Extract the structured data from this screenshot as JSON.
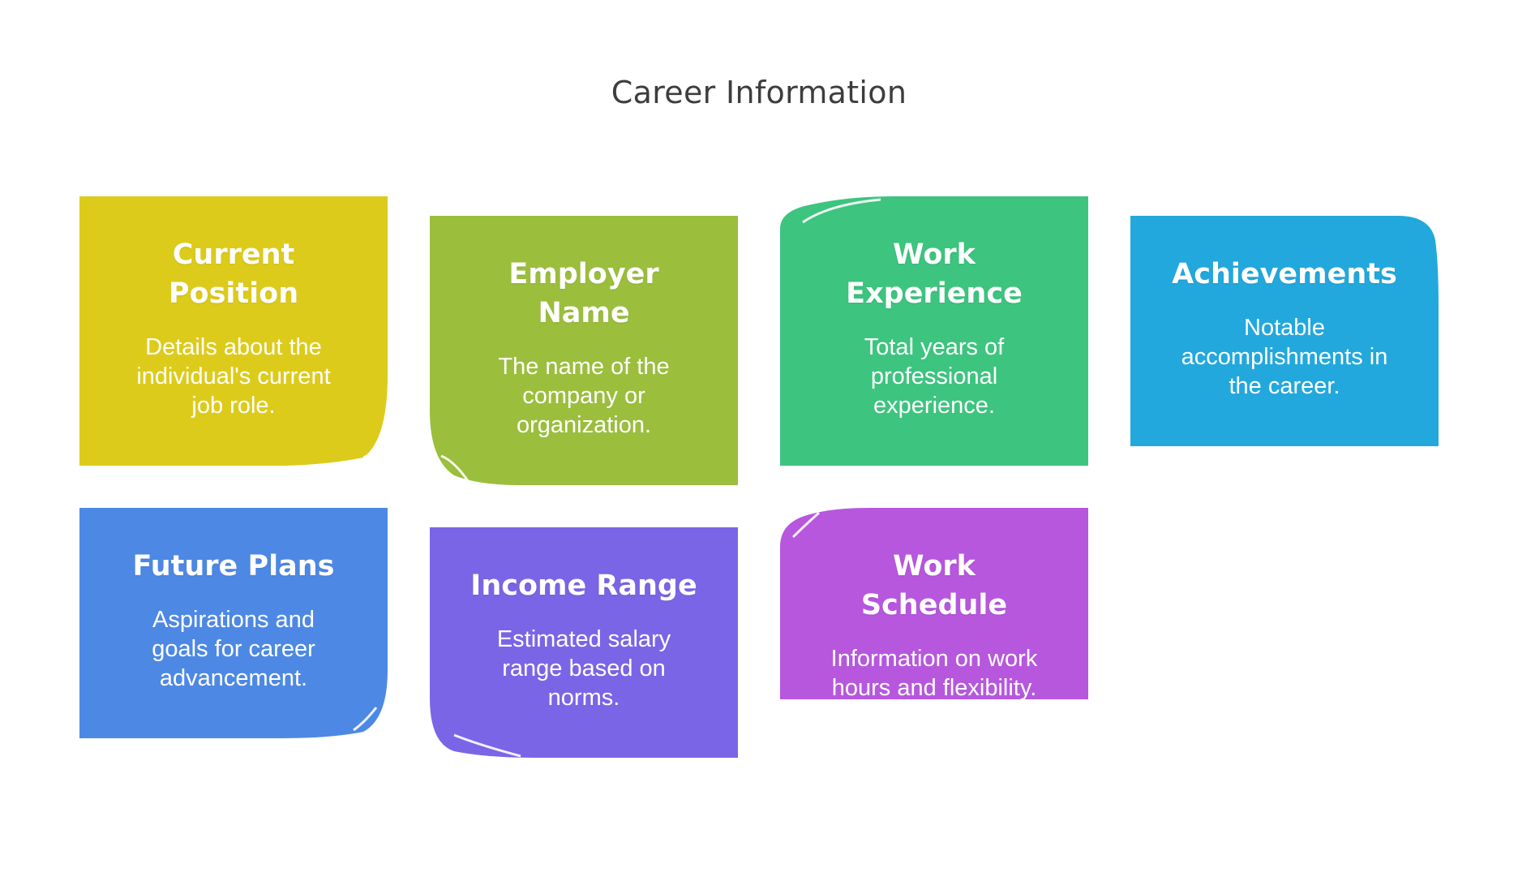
{
  "title": "Career Information",
  "cards": [
    {
      "heading": "Current Position",
      "description": "Details about the individual's current job role.",
      "color": "#DDCB1B"
    },
    {
      "heading": "Employer Name",
      "description": "The name of the company or organization.",
      "color": "#9BBE3D"
    },
    {
      "heading": "Work Experience",
      "description": "Total years of professional experience.",
      "color": "#3DC47F"
    },
    {
      "heading": "Achievements",
      "description": "Notable accomplishments in the career.",
      "color": "#22A8DC"
    },
    {
      "heading": "Future Plans",
      "description": "Aspirations and goals for career advancement.",
      "color": "#4D88E4"
    },
    {
      "heading": "Income Range",
      "description": "Estimated salary range based on norms.",
      "color": "#7A65E6"
    },
    {
      "heading": "Work Schedule",
      "description": "Information on work hours and flexibility.",
      "color": "#B657DE"
    }
  ]
}
